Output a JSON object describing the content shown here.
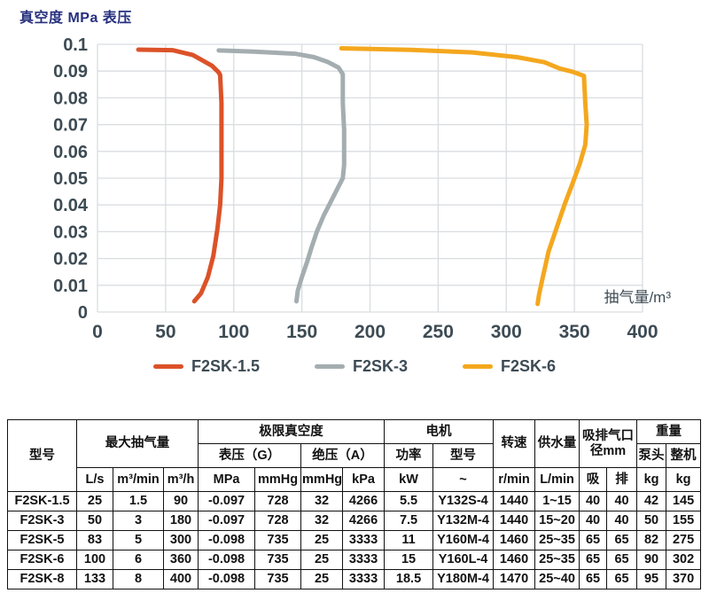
{
  "chart_data": {
    "type": "line",
    "title": "真空度 MPa 表压",
    "xlabel": "抽气量/m³",
    "ylabel": "真空度 MPa 表压",
    "xlim": [
      0,
      400
    ],
    "ylim": [
      0,
      0.1
    ],
    "x_ticks": [
      0,
      50,
      100,
      150,
      200,
      250,
      300,
      350,
      400
    ],
    "y_ticks": [
      0.1,
      0.09,
      0.08,
      0.07,
      0.06,
      0.05,
      0.04,
      0.03,
      0.02,
      0.01,
      0
    ],
    "y_tick_labels": [
      "0.1",
      "0.09",
      "0.08",
      "0.07",
      "0.06",
      "0.05",
      "0.04",
      "0.03",
      "0.02",
      "0.01",
      "0"
    ],
    "grid": true,
    "legend_position": "bottom",
    "colors": {
      "title": "#26307E",
      "tick_text": "#3D4B54",
      "grid": "#D9DDE0"
    },
    "series": [
      {
        "name": "F2SK-1.5",
        "color": "#DC5228",
        "points": [
          [
            30,
            0.098
          ],
          [
            55,
            0.0978
          ],
          [
            70,
            0.096
          ],
          [
            84,
            0.092
          ],
          [
            89,
            0.0895
          ],
          [
            90,
            0.0885
          ],
          [
            91,
            0.078
          ],
          [
            91,
            0.065
          ],
          [
            91,
            0.05
          ],
          [
            90,
            0.04
          ],
          [
            88,
            0.031
          ],
          [
            85,
            0.021
          ],
          [
            81,
            0.013
          ],
          [
            76,
            0.007
          ],
          [
            71,
            0.004
          ]
        ]
      },
      {
        "name": "F2SK-3",
        "color": "#A4ADB0",
        "points": [
          [
            89,
            0.0977
          ],
          [
            115,
            0.0973
          ],
          [
            145,
            0.0965
          ],
          [
            159,
            0.0952
          ],
          [
            169,
            0.0934
          ],
          [
            177,
            0.0913
          ],
          [
            180,
            0.0888
          ],
          [
            180,
            0.078
          ],
          [
            181,
            0.068
          ],
          [
            181,
            0.062
          ],
          [
            181,
            0.055
          ],
          [
            180,
            0.05
          ],
          [
            176,
            0.046
          ],
          [
            171,
            0.041
          ],
          [
            166,
            0.036
          ],
          [
            161,
            0.03
          ],
          [
            157,
            0.024
          ],
          [
            154,
            0.019
          ],
          [
            150,
            0.013
          ],
          [
            147,
            0.008
          ],
          [
            146,
            0.004
          ]
        ]
      },
      {
        "name": "F2SK-6",
        "color": "#F4A71E",
        "points": [
          [
            179,
            0.0985
          ],
          [
            230,
            0.0979
          ],
          [
            275,
            0.097
          ],
          [
            308,
            0.0952
          ],
          [
            328,
            0.0933
          ],
          [
            339,
            0.091
          ],
          [
            349,
            0.0897
          ],
          [
            357,
            0.0882
          ],
          [
            358,
            0.078
          ],
          [
            359,
            0.07
          ],
          [
            358,
            0.0625
          ],
          [
            354,
            0.0555
          ],
          [
            349,
            0.0485
          ],
          [
            343,
            0.0405
          ],
          [
            337,
            0.0315
          ],
          [
            331,
            0.0225
          ],
          [
            327,
            0.0135
          ],
          [
            324,
            0.0065
          ],
          [
            323,
            0.003
          ]
        ]
      }
    ]
  },
  "table": {
    "header": {
      "model": "型号",
      "max_capacity": "最大抽气量",
      "ultimate_vacuum": "极限真空度",
      "gauge": "表压（G）",
      "absolute": "绝压（A）",
      "motor": "电机",
      "power": "功率",
      "motor_model": "型号",
      "speed": "转速",
      "water_supply": "供水量",
      "port_diameter": "吸排气口径mm",
      "weight": "重量",
      "pump_head": "泵头",
      "complete_machine": "整机"
    },
    "units": [
      "L/s",
      "m³/min",
      "m³/h",
      "MPa",
      "mmHg",
      "mmHg",
      "kPa",
      "kW",
      "~",
      "r/min",
      "L/min",
      "吸",
      "排",
      "kg",
      "kg"
    ],
    "rows": [
      [
        "F2SK-1.5",
        "25",
        "1.5",
        "90",
        "-0.097",
        "728",
        "32",
        "4266",
        "5.5",
        "Y132S-4",
        "1440",
        "1~15",
        "40",
        "40",
        "42",
        "145"
      ],
      [
        "F2SK-3",
        "50",
        "3",
        "180",
        "-0.097",
        "728",
        "32",
        "4266",
        "7.5",
        "Y132M-4",
        "1440",
        "15~20",
        "40",
        "40",
        "50",
        "155"
      ],
      [
        "F2SK-5",
        "83",
        "5",
        "300",
        "-0.098",
        "735",
        "25",
        "3333",
        "11",
        "Y160M-4",
        "1460",
        "25~35",
        "65",
        "65",
        "82",
        "275"
      ],
      [
        "F2SK-6",
        "100",
        "6",
        "360",
        "-0.098",
        "735",
        "25",
        "3333",
        "15",
        "Y160L-4",
        "1460",
        "25~35",
        "65",
        "65",
        "90",
        "302"
      ],
      [
        "F2SK-8",
        "133",
        "8",
        "400",
        "-0.098",
        "735",
        "25",
        "3333",
        "18.5",
        "Y180M-4",
        "1470",
        "25~40",
        "65",
        "65",
        "95",
        "370"
      ]
    ]
  }
}
